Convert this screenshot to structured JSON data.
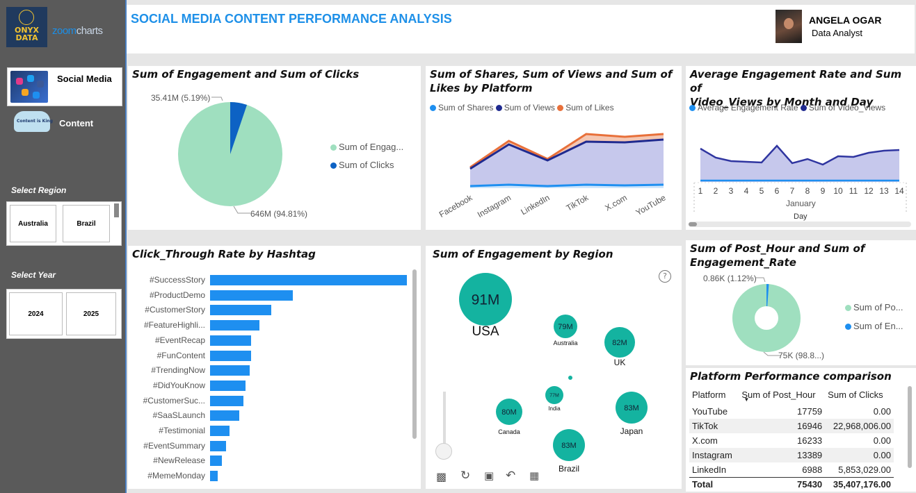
{
  "header": {
    "title": "SOCIAL MEDIA CONTENT PERFORMANCE ANALYSIS",
    "user_name": "ANGELA OGAR",
    "user_role": "Data Analyst"
  },
  "logos": {
    "onyx_line1": "ONYX",
    "onyx_line2": "DATA",
    "zoom_a": "zoom",
    "zoom_b": "charts"
  },
  "sidebar": {
    "nav": [
      {
        "label": "Social Media"
      },
      {
        "label": "Content",
        "image_text": "Content is King"
      }
    ],
    "region_heading": "Select Region",
    "regions": [
      "Australia",
      "Brazil"
    ],
    "year_heading": "Select Year",
    "years": [
      "2024",
      "2025"
    ]
  },
  "colors": {
    "accent": "#1e90e8",
    "mint": "#9fdfbf",
    "navy": "#1f2a8f",
    "orange": "#e8703a",
    "blue": "#1e8ff0",
    "teal": "#14b3a0"
  },
  "pie_engagement": {
    "title": "Sum of Engagement and Sum of Clicks",
    "slices": [
      {
        "name": "Sum of Engag...",
        "label": "646M (94.81%)",
        "share": 94.81
      },
      {
        "name": "Sum of Clicks",
        "label": "35.41M (5.19%)",
        "share": 5.19
      }
    ]
  },
  "platform_chart": {
    "title_line1": "Sum of Shares, Sum of Views and Sum of",
    "title_line2": "Likes by Platform",
    "legend": [
      "Sum of Shares",
      "Sum of Views",
      "Sum of Likes"
    ]
  },
  "engagement_rate_chart": {
    "title_line1": "Average Engagement Rate and Sum of",
    "title_line2": "Video_Views by Month and Day",
    "legend": [
      "Average Engagement Rate",
      "Sum of Video_Views"
    ],
    "month_label": "January",
    "axis_label": "Day"
  },
  "hashtag_chart": {
    "title": "Click_Through Rate by Hashtag"
  },
  "region_chart": {
    "title": "Sum of Engagement by Region",
    "help": "?"
  },
  "post_hour_chart": {
    "title_line1": "Sum of Post_Hour and Sum of",
    "title_line2": "Engagement_Rate",
    "slices": [
      {
        "name": "Sum of Po...",
        "label": "75K (98.8...)",
        "share": 98.88
      },
      {
        "name": "Sum of En...",
        "label": "0.86K (1.12%)",
        "share": 1.12
      }
    ]
  },
  "platform_table": {
    "title": "Platform Performance comparison",
    "columns": [
      "Platform",
      "Sum of Post_Hour",
      "Sum of Clicks"
    ],
    "sort_indicator": "▼",
    "rows": [
      [
        "YouTube",
        "17759",
        "0.00"
      ],
      [
        "TikTok",
        "16946",
        "22,968,006.00"
      ],
      [
        "X.com",
        "16233",
        "0.00"
      ],
      [
        "Instagram",
        "13389",
        "0.00"
      ],
      [
        "LinkedIn",
        "6988",
        "5,853,029.00"
      ]
    ],
    "total": [
      "Total",
      "75430",
      "35,407,176.00"
    ]
  },
  "chart_data": [
    {
      "type": "pie",
      "title": "Sum of Engagement and Sum of Clicks",
      "categories": [
        "Sum of Engagement",
        "Sum of Clicks"
      ],
      "values": [
        646,
        35.41
      ],
      "unit": "M",
      "percent": [
        94.81,
        5.19
      ]
    },
    {
      "type": "area",
      "title": "Sum of Shares, Sum of Views and Sum of Likes by Platform",
      "categories": [
        "Facebook",
        "Instagram",
        "LinkedIn",
        "TikTok",
        "X.com",
        "YouTube"
      ],
      "series": [
        {
          "name": "Sum of Shares",
          "values": [
            3,
            5,
            3,
            5,
            4,
            5
          ]
        },
        {
          "name": "Sum of Views",
          "values": [
            28,
            63,
            40,
            67,
            66,
            70
          ]
        },
        {
          "name": "Sum of Likes",
          "values": [
            30,
            68,
            42,
            78,
            74,
            78
          ]
        }
      ],
      "ylim": [
        0,
        100
      ]
    },
    {
      "type": "area",
      "title": "Average Engagement Rate and Sum of Video_Views by Month and Day",
      "x": [
        1,
        2,
        3,
        4,
        5,
        6,
        7,
        8,
        9,
        10,
        11,
        12,
        13,
        14
      ],
      "xlabel": "Day",
      "series": [
        {
          "name": "Average Engagement Rate",
          "values": [
            2,
            2,
            2,
            2,
            2,
            2,
            2,
            2,
            2,
            2,
            2,
            2,
            2,
            2
          ]
        },
        {
          "name": "Sum of Video_Views",
          "values": [
            48,
            35,
            30,
            29,
            28,
            52,
            27,
            33,
            25,
            37,
            36,
            42,
            45,
            46
          ]
        }
      ],
      "ylim": [
        0,
        60
      ]
    },
    {
      "type": "bar",
      "orientation": "horizontal",
      "title": "Click_Through Rate by Hashtag",
      "categories": [
        "#SuccessStory",
        "#ProductDemo",
        "#CustomerStory",
        "#FeatureHighli...",
        "#EventRecap",
        "#FunContent",
        "#TrendingNow",
        "#DidYouKnow",
        "#CustomerSuc...",
        "#SaaSLaunch",
        "#Testimonial",
        "#EventSummary",
        "#NewRelease",
        "#MemeMonday"
      ],
      "values": [
        100,
        42,
        31,
        25,
        21,
        21,
        20,
        18,
        17,
        15,
        10,
        8,
        6,
        4
      ]
    },
    {
      "type": "scatter",
      "title": "Sum of Engagement by Region",
      "categories": [
        "USA",
        "Australia",
        "UK",
        "India",
        "Canada",
        "Japan",
        "Brazil"
      ],
      "values": [
        91,
        79,
        82,
        77,
        80,
        83,
        83
      ],
      "labels": [
        "91M",
        "79M",
        "82M",
        "77M",
        "80M",
        "83M",
        "83M"
      ],
      "unit": "M"
    },
    {
      "type": "pie",
      "title": "Sum of Post_Hour and Sum of Engagement_Rate",
      "categories": [
        "Sum of Post_Hour",
        "Sum of Engagement_Rate"
      ],
      "values": [
        75,
        0.86
      ],
      "unit": "K",
      "percent": [
        98.88,
        1.12
      ]
    }
  ]
}
